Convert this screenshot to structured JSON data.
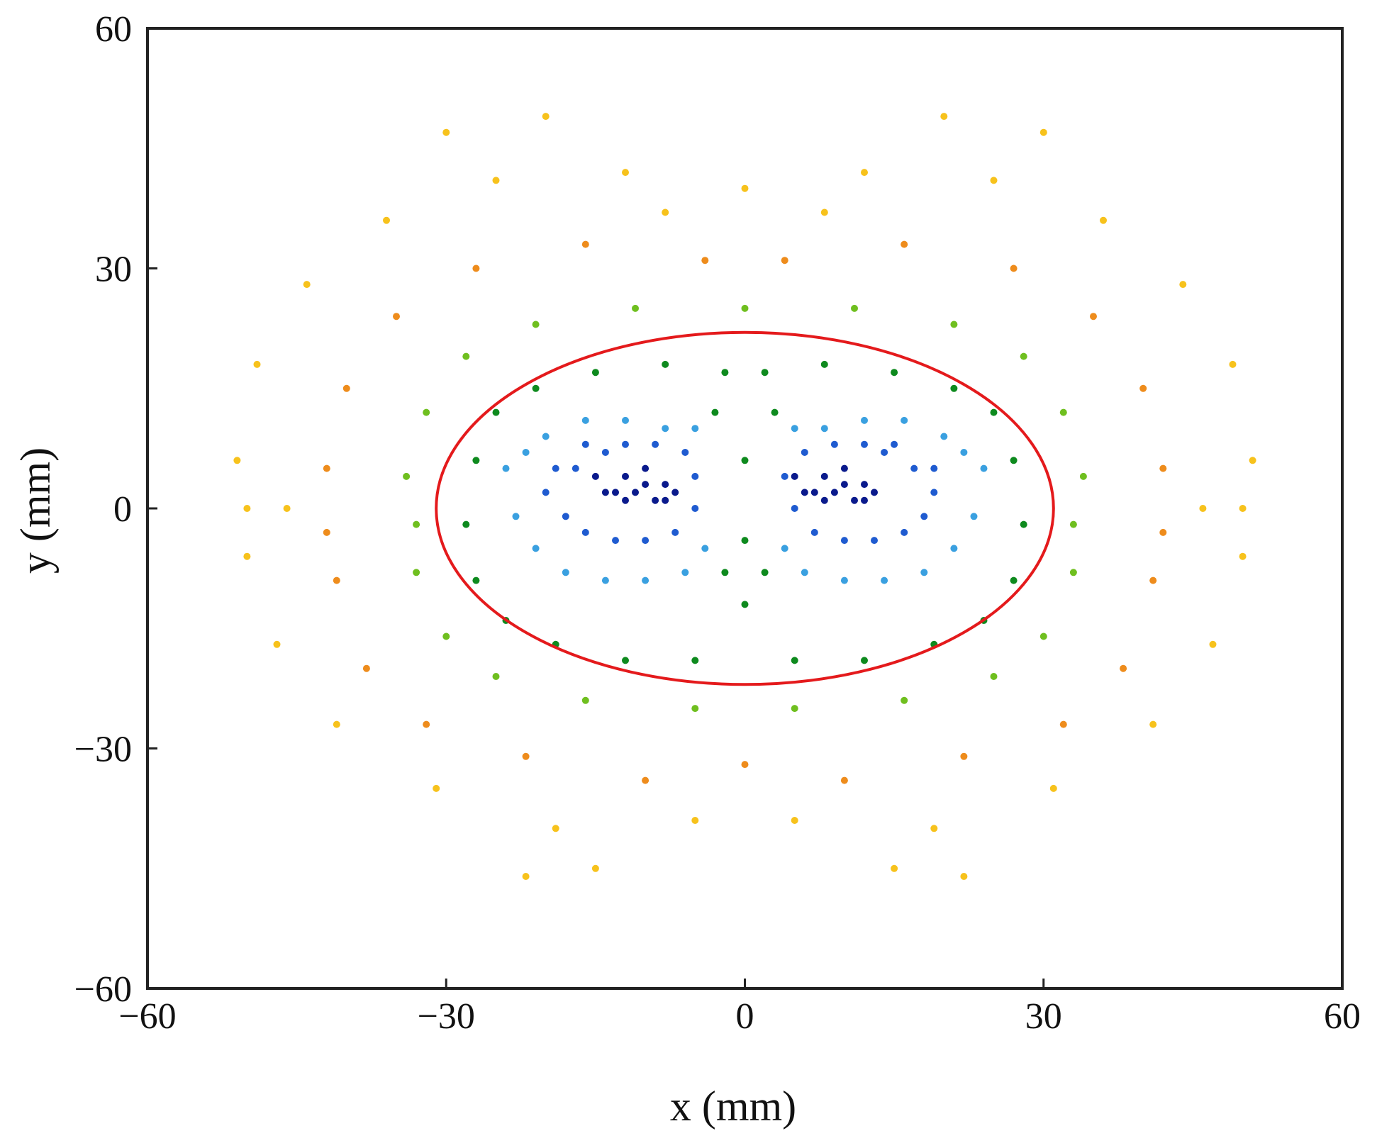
{
  "chart_data": {
    "type": "scatter",
    "title": "",
    "xlabel": "x (mm)",
    "ylabel": "y (mm)",
    "xlim": [
      -60,
      60
    ],
    "ylim": [
      -60,
      60
    ],
    "xticks": [
      -60,
      -30,
      0,
      30,
      60
    ],
    "yticks": [
      -60,
      -30,
      0,
      30,
      60
    ],
    "xtick_labels": [
      "−60",
      "−30",
      "0",
      "30",
      "60"
    ],
    "ytick_labels": [
      "−60",
      "−30",
      "0",
      "30",
      "60"
    ],
    "grid": false,
    "legend": "none",
    "series": [
      {
        "color": "#0a1a8c",
        "points": [
          [
            -15,
            4
          ],
          [
            -13,
            2
          ],
          [
            -12,
            4
          ],
          [
            -11,
            2
          ],
          [
            -10,
            3
          ],
          [
            -9,
            1
          ],
          [
            -8,
            3
          ],
          [
            -7,
            2
          ],
          [
            -14,
            2
          ],
          [
            -12,
            1
          ],
          [
            -10,
            5
          ],
          [
            -8,
            1
          ],
          [
            5,
            4
          ],
          [
            7,
            2
          ],
          [
            8,
            4
          ],
          [
            9,
            2
          ],
          [
            10,
            3
          ],
          [
            11,
            1
          ],
          [
            12,
            3
          ],
          [
            13,
            2
          ],
          [
            6,
            2
          ],
          [
            8,
            1
          ],
          [
            10,
            5
          ],
          [
            12,
            1
          ]
        ]
      },
      {
        "color": "#1f5bd0",
        "points": [
          [
            -20,
            2
          ],
          [
            -18,
            -1
          ],
          [
            -17,
            5
          ],
          [
            -16,
            -3
          ],
          [
            -14,
            7
          ],
          [
            -13,
            -4
          ],
          [
            -12,
            8
          ],
          [
            -10,
            -4
          ],
          [
            -9,
            8
          ],
          [
            -7,
            -3
          ],
          [
            -6,
            7
          ],
          [
            -5,
            4
          ],
          [
            -5,
            0
          ],
          [
            -19,
            5
          ],
          [
            -16,
            8
          ],
          [
            4,
            4
          ],
          [
            5,
            0
          ],
          [
            6,
            7
          ],
          [
            7,
            -3
          ],
          [
            9,
            8
          ],
          [
            10,
            -4
          ],
          [
            12,
            8
          ],
          [
            13,
            -4
          ],
          [
            14,
            7
          ],
          [
            16,
            -3
          ],
          [
            17,
            5
          ],
          [
            18,
            -1
          ],
          [
            19,
            2
          ],
          [
            19,
            5
          ],
          [
            15,
            8
          ]
        ]
      },
      {
        "color": "#3aa0e0",
        "points": [
          [
            -24,
            5
          ],
          [
            -23,
            -1
          ],
          [
            -22,
            7
          ],
          [
            -21,
            -5
          ],
          [
            -20,
            9
          ],
          [
            -18,
            -8
          ],
          [
            -16,
            11
          ],
          [
            -14,
            -9
          ],
          [
            -12,
            11
          ],
          [
            -10,
            -9
          ],
          [
            -8,
            10
          ],
          [
            -6,
            -8
          ],
          [
            -5,
            10
          ],
          [
            -4,
            -5
          ],
          [
            4,
            -5
          ],
          [
            5,
            10
          ],
          [
            6,
            -8
          ],
          [
            8,
            10
          ],
          [
            10,
            -9
          ],
          [
            12,
            11
          ],
          [
            14,
            -9
          ],
          [
            16,
            11
          ],
          [
            18,
            -8
          ],
          [
            20,
            9
          ],
          [
            21,
            -5
          ],
          [
            22,
            7
          ],
          [
            23,
            -1
          ],
          [
            24,
            5
          ]
        ]
      },
      {
        "color": "#0e8a1e",
        "points": [
          [
            -28,
            -2
          ],
          [
            -27,
            6
          ],
          [
            -27,
            -9
          ],
          [
            -25,
            12
          ],
          [
            -24,
            -14
          ],
          [
            -21,
            15
          ],
          [
            -19,
            -17
          ],
          [
            -15,
            17
          ],
          [
            -12,
            -19
          ],
          [
            -8,
            18
          ],
          [
            -5,
            -19
          ],
          [
            -2,
            17
          ],
          [
            0,
            -12
          ],
          [
            0,
            6
          ],
          [
            0,
            -4
          ],
          [
            2,
            17
          ],
          [
            5,
            -19
          ],
          [
            8,
            18
          ],
          [
            12,
            -19
          ],
          [
            15,
            17
          ],
          [
            19,
            -17
          ],
          [
            21,
            15
          ],
          [
            24,
            -14
          ],
          [
            25,
            12
          ],
          [
            27,
            -9
          ],
          [
            27,
            6
          ],
          [
            28,
            -2
          ],
          [
            -2,
            -8
          ],
          [
            2,
            -8
          ],
          [
            -3,
            12
          ],
          [
            3,
            12
          ]
        ]
      },
      {
        "color": "#6fbf1f",
        "points": [
          [
            -34,
            4
          ],
          [
            -33,
            -8
          ],
          [
            -32,
            12
          ],
          [
            -30,
            -16
          ],
          [
            -28,
            19
          ],
          [
            -25,
            -21
          ],
          [
            -21,
            23
          ],
          [
            -16,
            -24
          ],
          [
            -11,
            25
          ],
          [
            -5,
            -25
          ],
          [
            0,
            25
          ],
          [
            5,
            -25
          ],
          [
            11,
            25
          ],
          [
            16,
            -24
          ],
          [
            21,
            23
          ],
          [
            25,
            -21
          ],
          [
            28,
            19
          ],
          [
            30,
            -16
          ],
          [
            32,
            12
          ],
          [
            33,
            -8
          ],
          [
            34,
            4
          ],
          [
            -33,
            -2
          ],
          [
            33,
            -2
          ]
        ]
      },
      {
        "color": "#ee8c1c",
        "points": [
          [
            -42,
            5
          ],
          [
            -41,
            -9
          ],
          [
            -40,
            15
          ],
          [
            -38,
            -20
          ],
          [
            -35,
            24
          ],
          [
            -32,
            -27
          ],
          [
            -27,
            30
          ],
          [
            -22,
            -31
          ],
          [
            -16,
            33
          ],
          [
            -10,
            -34
          ],
          [
            -4,
            31
          ],
          [
            0,
            -32
          ],
          [
            4,
            31
          ],
          [
            10,
            -34
          ],
          [
            16,
            33
          ],
          [
            22,
            -31
          ],
          [
            27,
            30
          ],
          [
            32,
            -27
          ],
          [
            35,
            24
          ],
          [
            38,
            -20
          ],
          [
            40,
            15
          ],
          [
            41,
            -9
          ],
          [
            42,
            5
          ],
          [
            -42,
            -3
          ],
          [
            42,
            -3
          ]
        ]
      },
      {
        "color": "#f7c21c",
        "points": [
          [
            -51,
            6
          ],
          [
            -50,
            -6
          ],
          [
            -49,
            18
          ],
          [
            -47,
            -17
          ],
          [
            -44,
            28
          ],
          [
            -41,
            -27
          ],
          [
            -36,
            36
          ],
          [
            -31,
            -35
          ],
          [
            -25,
            41
          ],
          [
            -19,
            -40
          ],
          [
            -12,
            42
          ],
          [
            -5,
            -39
          ],
          [
            0,
            40
          ],
          [
            5,
            -39
          ],
          [
            12,
            42
          ],
          [
            19,
            -40
          ],
          [
            25,
            41
          ],
          [
            31,
            -35
          ],
          [
            36,
            36
          ],
          [
            41,
            -27
          ],
          [
            44,
            28
          ],
          [
            47,
            -17
          ],
          [
            49,
            18
          ],
          [
            50,
            -6
          ],
          [
            51,
            6
          ],
          [
            -20,
            49
          ],
          [
            20,
            49
          ],
          [
            -22,
            -46
          ],
          [
            22,
            -46
          ],
          [
            -46,
            0
          ],
          [
            46,
            0
          ],
          [
            -8,
            37
          ],
          [
            8,
            37
          ],
          [
            -30,
            47
          ],
          [
            30,
            47
          ],
          [
            -50,
            0
          ],
          [
            50,
            0
          ],
          [
            -15,
            -45
          ],
          [
            15,
            -45
          ]
        ]
      }
    ],
    "overlay": {
      "type": "ellipse",
      "color": "#e41a1c",
      "center": [
        0,
        0
      ],
      "semi_axes": [
        31,
        22
      ]
    }
  }
}
